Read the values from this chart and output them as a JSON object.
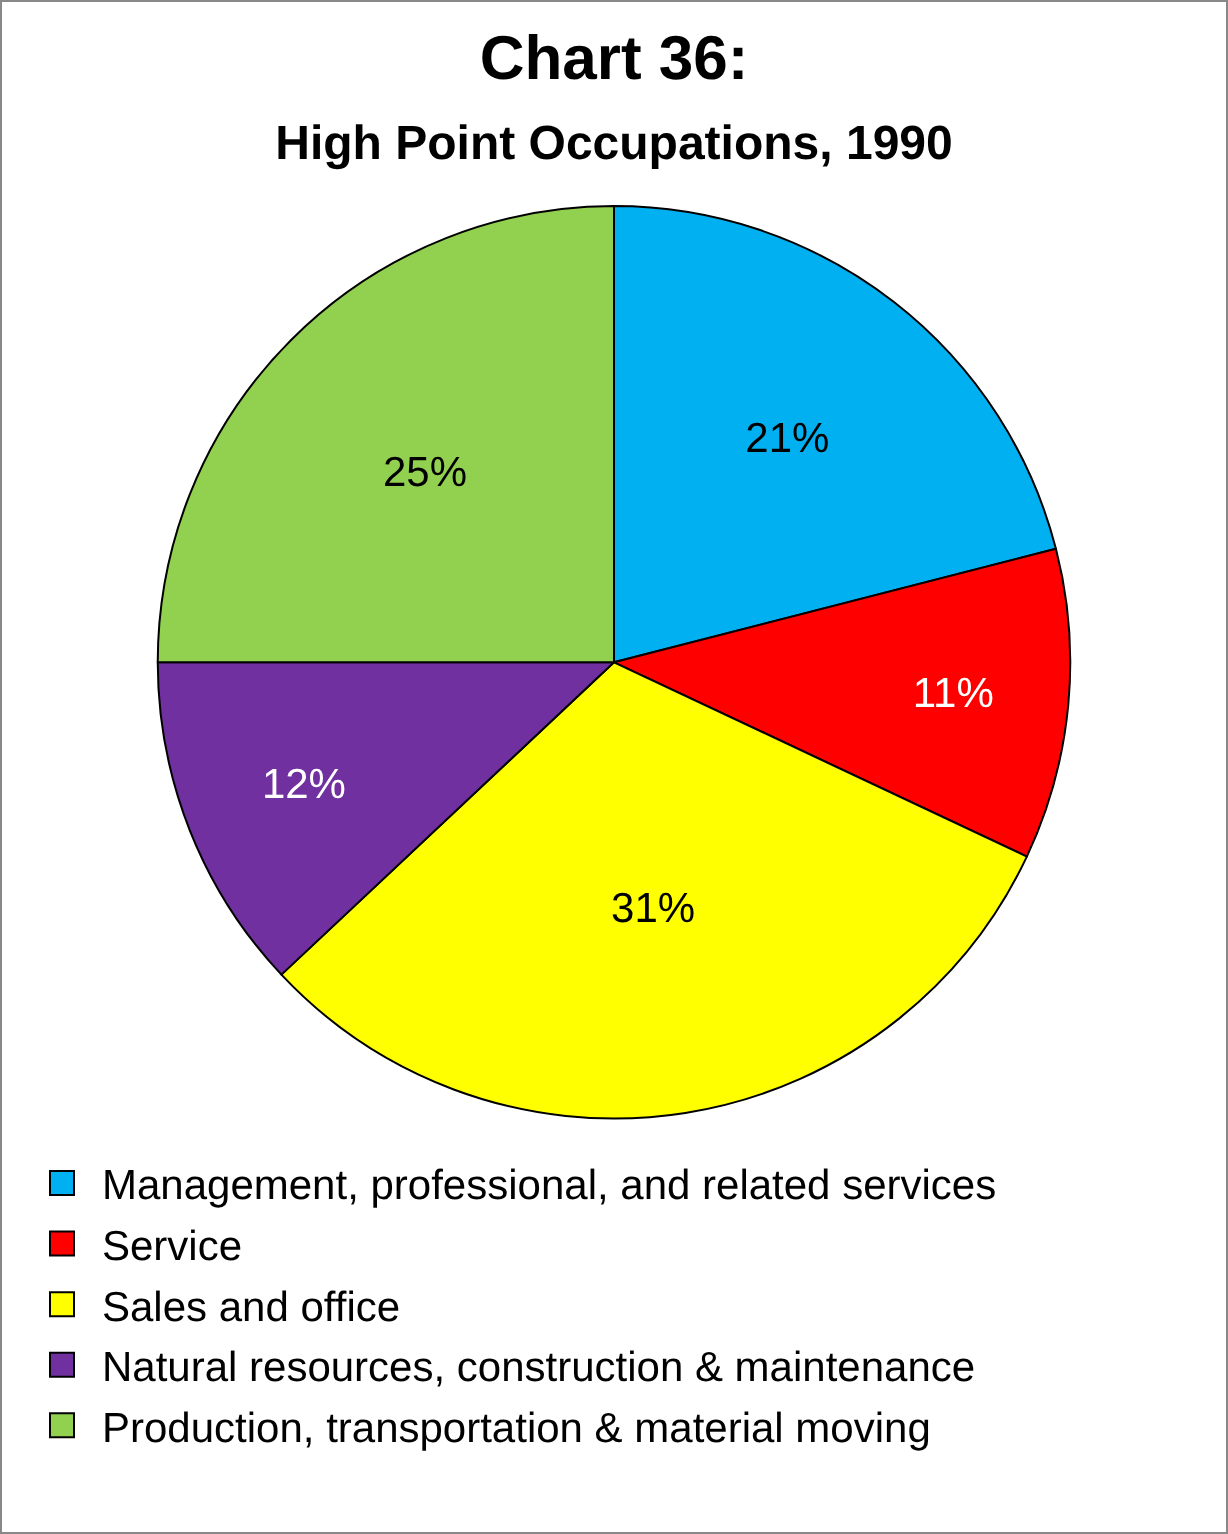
{
  "chart_data": {
    "type": "pie",
    "title": "Chart 36:",
    "subtitle": "High Point Occupations, 1990",
    "categories": [
      "Management, professional, and related services",
      "Service",
      "Sales and office",
      "Natural resources, construction & maintenance",
      "Production, transportation & material moving"
    ],
    "values": [
      21,
      11,
      31,
      12,
      25
    ],
    "value_labels": [
      "21%",
      "11%",
      "31%",
      "12%",
      "25%"
    ],
    "colors": [
      "#00b0f0",
      "#ff0000",
      "#ffff00",
      "#7030a0",
      "#92d050"
    ],
    "legend": "bottom"
  }
}
